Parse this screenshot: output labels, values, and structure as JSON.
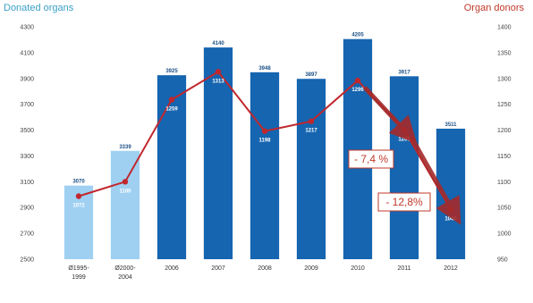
{
  "chart_data": {
    "type": "bar",
    "title": "",
    "left_axis_title": "Donated organs",
    "right_axis_title": "Organ donors",
    "categories": [
      [
        "Ø1995-",
        "1999"
      ],
      [
        "Ø2000-",
        "2004"
      ],
      [
        "2006"
      ],
      [
        "2007"
      ],
      [
        "2008"
      ],
      [
        "2009"
      ],
      [
        "2010"
      ],
      [
        "2011"
      ],
      [
        "2012"
      ]
    ],
    "left_axis": {
      "min": 2500,
      "max": 4300,
      "ticks": [
        4300,
        4100,
        3900,
        3700,
        3500,
        3300,
        3100,
        2900,
        2700,
        2500
      ]
    },
    "right_axis": {
      "min": 950,
      "max": 1400,
      "ticks": [
        1400,
        1350,
        1300,
        1250,
        1200,
        1150,
        1100,
        1050,
        1000,
        950
      ]
    },
    "series": [
      {
        "name": "Donated organs",
        "kind": "bar",
        "values": [
          3070,
          3339,
          3925,
          4140,
          3948,
          3897,
          4205,
          3917,
          3511
        ],
        "labels": [
          "3070",
          "3339",
          "3925",
          "4140",
          "3948",
          "3897",
          "4205",
          "3917",
          "3511"
        ],
        "bar_styles": [
          "light",
          "light",
          "dark",
          "dark",
          "dark",
          "dark",
          "dark",
          "dark",
          "dark"
        ]
      },
      {
        "name": "Organ donors",
        "kind": "line",
        "axis": "right",
        "values": [
          1072,
          1100,
          1259,
          1313,
          1198,
          1217,
          1296,
          1200,
          1046
        ],
        "labels": [
          "1072",
          "1100",
          "1259",
          "1313",
          "1198",
          "1217",
          "1296",
          "1200",
          "1046"
        ]
      }
    ],
    "annotations": [
      {
        "text": "- 7,4 %",
        "from_index": 6,
        "to_index": 7
      },
      {
        "text": "- 12,8%",
        "from_index": 7,
        "to_index": 8
      }
    ],
    "grid": false
  },
  "colors": {
    "bar_light": "#9fd0f2",
    "bar_dark": "#1565b0",
    "line": "#c0272d",
    "bar_label_light": "#1a4f86",
    "bar_label_dark": "#ffffff",
    "left_title": "#3aa0c8",
    "right_title": "#c0392b"
  }
}
